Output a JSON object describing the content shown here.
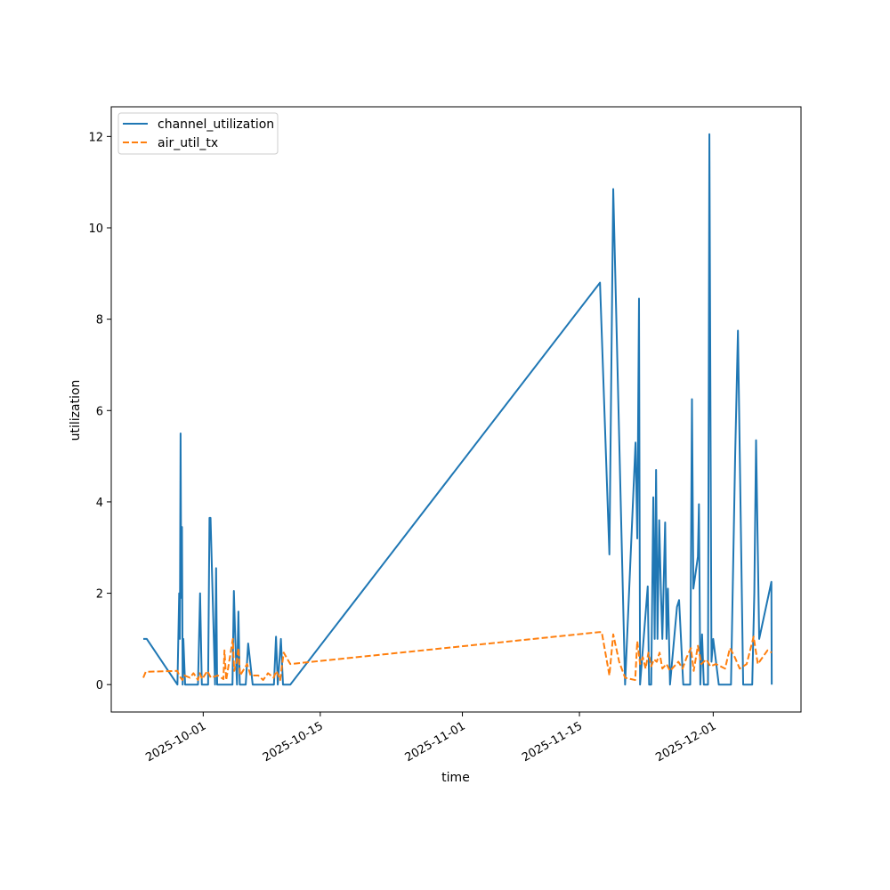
{
  "chart_data": {
    "type": "line",
    "title": "",
    "xlabel": "time",
    "ylabel": "utilization",
    "xlim": [
      "2025-09-20T00:00",
      "2025-12-11T12:00"
    ],
    "ylim": [
      -0.6,
      12.65
    ],
    "x_ticks": [
      "2025-10-01",
      "2025-10-15",
      "2025-11-01",
      "2025-11-15",
      "2025-12-01"
    ],
    "y_ticks": [
      0,
      2,
      4,
      6,
      8,
      10,
      12
    ],
    "grid": false,
    "legend_position": "top-left",
    "series": [
      {
        "name": "channel_utilization",
        "color": "#1f77b4",
        "dash": "solid",
        "points": [
          [
            "2025-09-23T20:00",
            1.0
          ],
          [
            "2025-09-24T06:00",
            1.0
          ],
          [
            "2025-09-27T22:00",
            0.0
          ],
          [
            "2025-09-28T03:00",
            2.0
          ],
          [
            "2025-09-28T05:00",
            1.0
          ],
          [
            "2025-09-28T07:00",
            5.5
          ],
          [
            "2025-09-28T09:00",
            1.9
          ],
          [
            "2025-09-28T11:00",
            3.45
          ],
          [
            "2025-09-28T13:00",
            0.0
          ],
          [
            "2025-09-28T15:00",
            1.0
          ],
          [
            "2025-09-28T20:00",
            0.0
          ],
          [
            "2025-09-30T09:00",
            0.0
          ],
          [
            "2025-09-30T15:00",
            2.0
          ],
          [
            "2025-09-30T20:00",
            0.0
          ],
          [
            "2025-10-01T14:00",
            0.0
          ],
          [
            "2025-10-01T18:00",
            3.65
          ],
          [
            "2025-10-01T21:00",
            3.65
          ],
          [
            "2025-10-02T10:00",
            0.0
          ],
          [
            "2025-10-02T13:00",
            2.55
          ],
          [
            "2025-10-02T16:00",
            0.0
          ],
          [
            "2025-10-04T12:00",
            0.0
          ],
          [
            "2025-10-04T16:00",
            2.05
          ],
          [
            "2025-10-04T20:00",
            1.0
          ],
          [
            "2025-10-05T01:00",
            0.0
          ],
          [
            "2025-10-05T05:00",
            1.6
          ],
          [
            "2025-10-05T09:00",
            0.0
          ],
          [
            "2025-10-06T02:00",
            0.0
          ],
          [
            "2025-10-06T09:00",
            0.9
          ],
          [
            "2025-10-06T22:00",
            0.0
          ],
          [
            "2025-10-09T11:00",
            0.0
          ],
          [
            "2025-10-09T17:00",
            1.05
          ],
          [
            "2025-10-09T22:00",
            0.0
          ],
          [
            "2025-10-10T07:00",
            1.0
          ],
          [
            "2025-10-10T13:00",
            0.0
          ],
          [
            "2025-10-11T10:00",
            0.0
          ],
          [
            "2025-11-17T11:00",
            8.8
          ],
          [
            "2025-11-18T14:00",
            2.85
          ],
          [
            "2025-11-19T01:00",
            10.85
          ],
          [
            "2025-11-20T11:00",
            0.0
          ],
          [
            "2025-11-21T17:00",
            5.3
          ],
          [
            "2025-11-21T22:00",
            3.2
          ],
          [
            "2025-11-22T03:00",
            8.45
          ],
          [
            "2025-11-22T06:00",
            0.0
          ],
          [
            "2025-11-23T04:00",
            2.15
          ],
          [
            "2025-11-23T08:00",
            0.0
          ],
          [
            "2025-11-23T14:00",
            0.0
          ],
          [
            "2025-11-23T20:00",
            4.1
          ],
          [
            "2025-11-24T00:00",
            1.0
          ],
          [
            "2025-11-24T04:00",
            4.7
          ],
          [
            "2025-11-24T08:00",
            1.0
          ],
          [
            "2025-11-24T13:00",
            3.6
          ],
          [
            "2025-11-24T18:00",
            2.0
          ],
          [
            "2025-11-24T22:00",
            1.0
          ],
          [
            "2025-11-25T06:00",
            3.55
          ],
          [
            "2025-11-25T10:00",
            1.0
          ],
          [
            "2025-11-25T14:00",
            2.1
          ],
          [
            "2025-11-25T20:00",
            0.0
          ],
          [
            "2025-11-26T16:00",
            1.7
          ],
          [
            "2025-11-26T22:00",
            1.85
          ],
          [
            "2025-11-27T10:00",
            0.0
          ],
          [
            "2025-11-28T06:00",
            0.0
          ],
          [
            "2025-11-28T11:00",
            6.25
          ],
          [
            "2025-11-28T15:00",
            2.1
          ],
          [
            "2025-11-29T04:00",
            2.8
          ],
          [
            "2025-11-29T07:00",
            3.95
          ],
          [
            "2025-11-29T11:00",
            0.0
          ],
          [
            "2025-11-29T16:00",
            1.1
          ],
          [
            "2025-11-29T21:00",
            0.0
          ],
          [
            "2025-11-30T09:00",
            0.0
          ],
          [
            "2025-11-30T13:00",
            12.05
          ],
          [
            "2025-11-30T19:00",
            0.5
          ],
          [
            "2025-12-01T00:00",
            1.0
          ],
          [
            "2025-12-01T16:00",
            0.0
          ],
          [
            "2025-12-03T03:00",
            0.0
          ],
          [
            "2025-12-03T15:00",
            5.0
          ],
          [
            "2025-12-03T23:00",
            7.75
          ],
          [
            "2025-12-04T14:00",
            0.0
          ],
          [
            "2025-12-05T16:00",
            0.0
          ],
          [
            "2025-12-05T22:00",
            2.0
          ],
          [
            "2025-12-06T03:00",
            5.35
          ],
          [
            "2025-12-06T12:00",
            1.0
          ],
          [
            "2025-12-07T23:00",
            2.25
          ],
          [
            "2025-12-08T00:00",
            0.0
          ]
        ]
      },
      {
        "name": "air_util_tx",
        "color": "#ff7f0e",
        "dash": "dashed",
        "points": [
          [
            "2025-09-23T20:00",
            0.15
          ],
          [
            "2025-09-24T03:00",
            0.28
          ],
          [
            "2025-09-27T22:00",
            0.3
          ],
          [
            "2025-09-28T03:00",
            0.2
          ],
          [
            "2025-09-28T12:00",
            0.1
          ],
          [
            "2025-09-28T18:00",
            0.2
          ],
          [
            "2025-09-29T10:00",
            0.15
          ],
          [
            "2025-09-29T20:00",
            0.25
          ],
          [
            "2025-09-30T09:00",
            0.1
          ],
          [
            "2025-09-30T14:00",
            0.25
          ],
          [
            "2025-09-30T21:00",
            0.12
          ],
          [
            "2025-10-01T12:00",
            0.3
          ],
          [
            "2025-10-01T22:00",
            0.15
          ],
          [
            "2025-10-02T18:00",
            0.2
          ],
          [
            "2025-10-03T10:00",
            0.12
          ],
          [
            "2025-10-03T13:00",
            0.75
          ],
          [
            "2025-10-03T18:00",
            0.1
          ],
          [
            "2025-10-04T13:00",
            1.0
          ],
          [
            "2025-10-04T17:00",
            0.3
          ],
          [
            "2025-10-05T00:00",
            0.5
          ],
          [
            "2025-10-05T05:00",
            0.8
          ],
          [
            "2025-10-05T10:00",
            0.2
          ],
          [
            "2025-10-06T06:00",
            0.45
          ],
          [
            "2025-10-06T16:00",
            0.2
          ],
          [
            "2025-10-07T14:00",
            0.2
          ],
          [
            "2025-10-08T04:00",
            0.1
          ],
          [
            "2025-10-08T18:00",
            0.25
          ],
          [
            "2025-10-09T10:00",
            0.15
          ],
          [
            "2025-10-09T18:00",
            0.3
          ],
          [
            "2025-10-10T05:00",
            0.1
          ],
          [
            "2025-10-10T15:00",
            0.7
          ],
          [
            "2025-10-11T10:00",
            0.45
          ],
          [
            "2025-11-17T10:00",
            1.15
          ],
          [
            "2025-11-17T16:00",
            1.15
          ],
          [
            "2025-11-18T14:00",
            0.2
          ],
          [
            "2025-11-19T01:00",
            1.1
          ],
          [
            "2025-11-19T18:00",
            0.5
          ],
          [
            "2025-11-20T11:00",
            0.15
          ],
          [
            "2025-11-21T16:00",
            0.1
          ],
          [
            "2025-11-21T22:00",
            0.95
          ],
          [
            "2025-11-22T06:00",
            0.45
          ],
          [
            "2025-11-22T14:00",
            0.6
          ],
          [
            "2025-11-22T22:00",
            0.35
          ],
          [
            "2025-11-23T06:00",
            0.7
          ],
          [
            "2025-11-23T14:00",
            0.4
          ],
          [
            "2025-11-23T22:00",
            0.55
          ],
          [
            "2025-11-24T06:00",
            0.5
          ],
          [
            "2025-11-24T14:00",
            0.7
          ],
          [
            "2025-11-24T22:00",
            0.35
          ],
          [
            "2025-11-25T10:00",
            0.45
          ],
          [
            "2025-11-25T20:00",
            0.3
          ],
          [
            "2025-11-26T08:00",
            0.4
          ],
          [
            "2025-11-26T20:00",
            0.5
          ],
          [
            "2025-11-27T08:00",
            0.35
          ],
          [
            "2025-11-27T20:00",
            0.6
          ],
          [
            "2025-11-28T08:00",
            0.8
          ],
          [
            "2025-11-28T16:00",
            0.3
          ],
          [
            "2025-11-29T04:00",
            0.85
          ],
          [
            "2025-11-29T14:00",
            0.45
          ],
          [
            "2025-11-30T04:00",
            0.55
          ],
          [
            "2025-11-30T16:00",
            0.4
          ],
          [
            "2025-12-01T08:00",
            0.45
          ],
          [
            "2025-12-02T10:00",
            0.35
          ],
          [
            "2025-12-03T00:00",
            0.8
          ],
          [
            "2025-12-03T14:00",
            0.6
          ],
          [
            "2025-12-04T04:00",
            0.35
          ],
          [
            "2025-12-05T00:00",
            0.45
          ],
          [
            "2025-12-05T20:00",
            1.05
          ],
          [
            "2025-12-06T08:00",
            0.45
          ],
          [
            "2025-12-07T12:00",
            0.75
          ],
          [
            "2025-12-08T00:00",
            0.7
          ]
        ]
      }
    ]
  }
}
